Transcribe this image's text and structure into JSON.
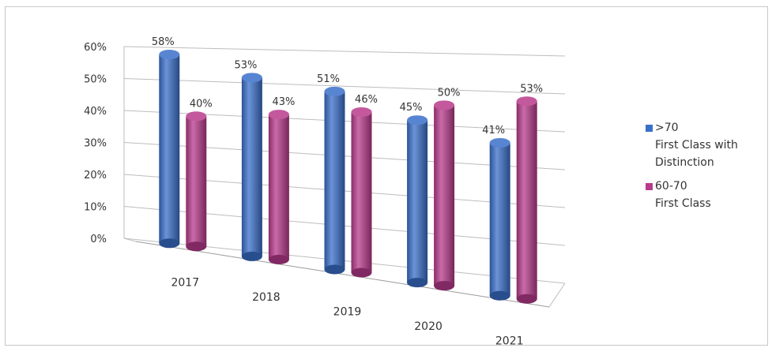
{
  "chart_data": {
    "type": "bar",
    "categories": [
      "2017",
      "2018",
      "2019",
      "2020",
      "2021"
    ],
    "series": [
      {
        "name": ">70 First Class with Distinction",
        "legend_lines": [
          ">70",
          "First Class with",
          "Distinction"
        ],
        "values": [
          58,
          53,
          51,
          45,
          41
        ],
        "labels": [
          "58%",
          "53%",
          "51%",
          "45%",
          "41%"
        ],
        "color": "#3a6fc9"
      },
      {
        "name": "60-70 First Class",
        "legend_lines": [
          "60-70",
          "First Class"
        ],
        "values": [
          40,
          43,
          46,
          50,
          53
        ],
        "labels": [
          "40%",
          "43%",
          "46%",
          "50%",
          "53%"
        ],
        "color": "#b83a8c"
      }
    ],
    "yticks": [
      "0%",
      "10%",
      "20%",
      "30%",
      "40%",
      "50%",
      "60%"
    ],
    "ylim": [
      0,
      60
    ],
    "grid": true,
    "legend": "right",
    "style": "3d-cylinder"
  }
}
